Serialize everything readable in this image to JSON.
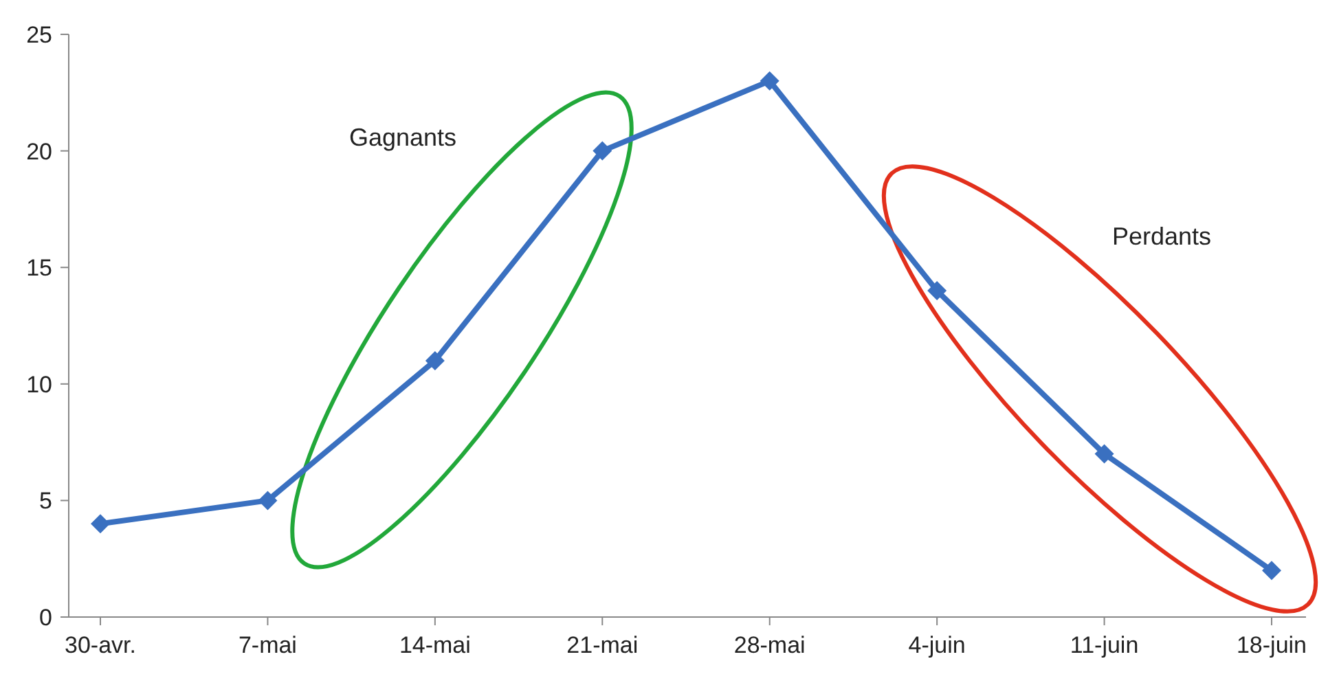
{
  "chart_data": {
    "type": "line",
    "categories": [
      "30-avr.",
      "7-mai",
      "14-mai",
      "21-mai",
      "28-mai",
      "4-juin",
      "11-juin",
      "18-juin"
    ],
    "series": [
      {
        "color": "#3a70c0",
        "values": [
          4,
          5,
          11,
          20,
          23,
          14,
          7,
          2
        ]
      }
    ],
    "ylim": [
      0,
      25
    ],
    "yticks": [
      0,
      5,
      10,
      15,
      20,
      25
    ],
    "grid": false,
    "marker": "diamond",
    "line_style": "solid",
    "annotations": [
      "Gagnants",
      "Perdants"
    ]
  }
}
